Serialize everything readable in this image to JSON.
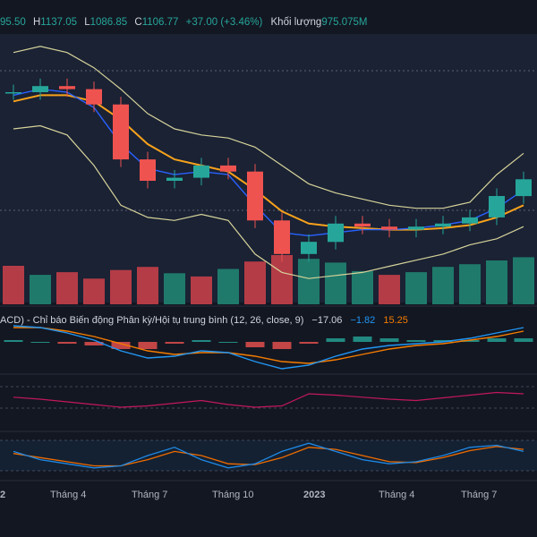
{
  "ohlc_header": {
    "open": "95.50",
    "high_label": "H",
    "high": "1137.05",
    "low_label": "L",
    "low": "1086.85",
    "close_label": "C",
    "close": "1106.77",
    "change": "+37.00 (+3.46%)",
    "volume_label": "Khối lượng",
    "volume": "975.075M"
  },
  "macd_header": {
    "title": "ACD) - Chỉ báo Biến động Phân kỳ/Hội tụ trung bình (12, 26, close, 9)",
    "histogram": "−17.06",
    "macd": "−1.82",
    "signal": "15.25"
  },
  "colors": {
    "background": "#131722",
    "price_panel_bg": "#1a2234",
    "up": "#26a69a",
    "down": "#ef5350",
    "volume_up": "#1f7a6b",
    "volume_down": "#b43c46",
    "ma_fast": "#2962ff",
    "ma_slow": "#f7a21b",
    "bollinger": "#d7d39a",
    "macd_line": "#2196f3",
    "signal_line": "#f57c00",
    "rsi": "#c2185b",
    "stoch_k": "#1e88e5",
    "stoch_d": "#ef6c00",
    "axis_text": "#b2b5be"
  },
  "x_axis": {
    "labels": [
      "2",
      "Tháng 4",
      "Tháng 7",
      "Tháng 10",
      "2023",
      "Tháng 4",
      "Tháng 7"
    ]
  },
  "chart_data": [
    {
      "type": "candlestick",
      "series_group": "weekly-price",
      "x": [
        "2022-01",
        "2022-02",
        "2022-03",
        "2022-04",
        "2022-05",
        "2022-06",
        "2022-07",
        "2022-08",
        "2022-09",
        "2022-10",
        "2022-11",
        "2022-12",
        "2023-01",
        "2023-02",
        "2023-03",
        "2023-04",
        "2023-05",
        "2023-06",
        "2023-07",
        "2023-08"
      ],
      "close": [
        1490,
        1510,
        1500,
        1450,
        1270,
        1200,
        1210,
        1250,
        1230,
        1070,
        960,
        1000,
        1060,
        1050,
        1040,
        1050,
        1060,
        1080,
        1150,
        1205
      ],
      "ma_fast": [
        1480,
        1500,
        1490,
        1440,
        1320,
        1240,
        1220,
        1230,
        1220,
        1120,
        1030,
        1020,
        1030,
        1040,
        1040,
        1045,
        1055,
        1070,
        1110,
        1170
      ],
      "ma_slow": [
        1460,
        1480,
        1480,
        1460,
        1400,
        1320,
        1270,
        1250,
        1230,
        1170,
        1100,
        1060,
        1050,
        1045,
        1040,
        1040,
        1045,
        1055,
        1080,
        1120
      ],
      "bollinger_upper": [
        1620,
        1640,
        1620,
        1570,
        1500,
        1420,
        1370,
        1350,
        1340,
        1310,
        1250,
        1190,
        1160,
        1140,
        1120,
        1110,
        1110,
        1130,
        1220,
        1290
      ],
      "bollinger_lower": [
        1370,
        1380,
        1350,
        1250,
        1120,
        1080,
        1070,
        1090,
        1070,
        960,
        900,
        880,
        890,
        900,
        920,
        940,
        960,
        990,
        1010,
        1050
      ]
    },
    {
      "type": "bar",
      "series_group": "volume",
      "values": [
        72,
        55,
        60,
        48,
        64,
        70,
        58,
        52,
        66,
        80,
        92,
        85,
        78,
        62,
        55,
        60,
        70,
        75,
        82,
        88
      ],
      "up": [
        false,
        true,
        false,
        false,
        false,
        false,
        true,
        false,
        true,
        false,
        false,
        true,
        true,
        true,
        false,
        true,
        true,
        true,
        true,
        true
      ]
    },
    {
      "type": "line",
      "series_group": "macd",
      "series": [
        {
          "values": [
            18,
            16,
            10,
            2,
            -10,
            -18,
            -16,
            -10,
            -12,
            -22,
            -30,
            -26,
            -16,
            -8,
            -4,
            -2,
            0,
            4,
            10,
            16
          ]
        },
        {
          "values": [
            16,
            16,
            12,
            6,
            -2,
            -10,
            -14,
            -12,
            -12,
            -16,
            -22,
            -24,
            -20,
            -14,
            -8,
            -4,
            -2,
            2,
            6,
            12
          ]
        }
      ],
      "histogram": [
        2,
        0,
        -2,
        -4,
        -8,
        -8,
        -2,
        2,
        0,
        -6,
        -8,
        -2,
        4,
        6,
        4,
        2,
        2,
        2,
        4,
        4
      ]
    },
    {
      "type": "line",
      "series_group": "rsi",
      "series": [
        {
          "values": [
            55,
            52,
            48,
            44,
            40,
            42,
            46,
            50,
            44,
            40,
            42,
            60,
            58,
            55,
            52,
            50,
            54,
            58,
            62,
            60
          ]
        }
      ]
    },
    {
      "type": "line",
      "series_group": "stochastic",
      "series": [
        {
          "values": [
            60,
            40,
            30,
            20,
            25,
            50,
            70,
            40,
            20,
            30,
            60,
            80,
            60,
            40,
            30,
            35,
            50,
            70,
            75,
            60
          ]
        },
        {
          "values": [
            55,
            45,
            35,
            25,
            25,
            40,
            60,
            50,
            30,
            28,
            45,
            70,
            65,
            50,
            35,
            33,
            45,
            62,
            72,
            65
          ]
        }
      ]
    }
  ]
}
